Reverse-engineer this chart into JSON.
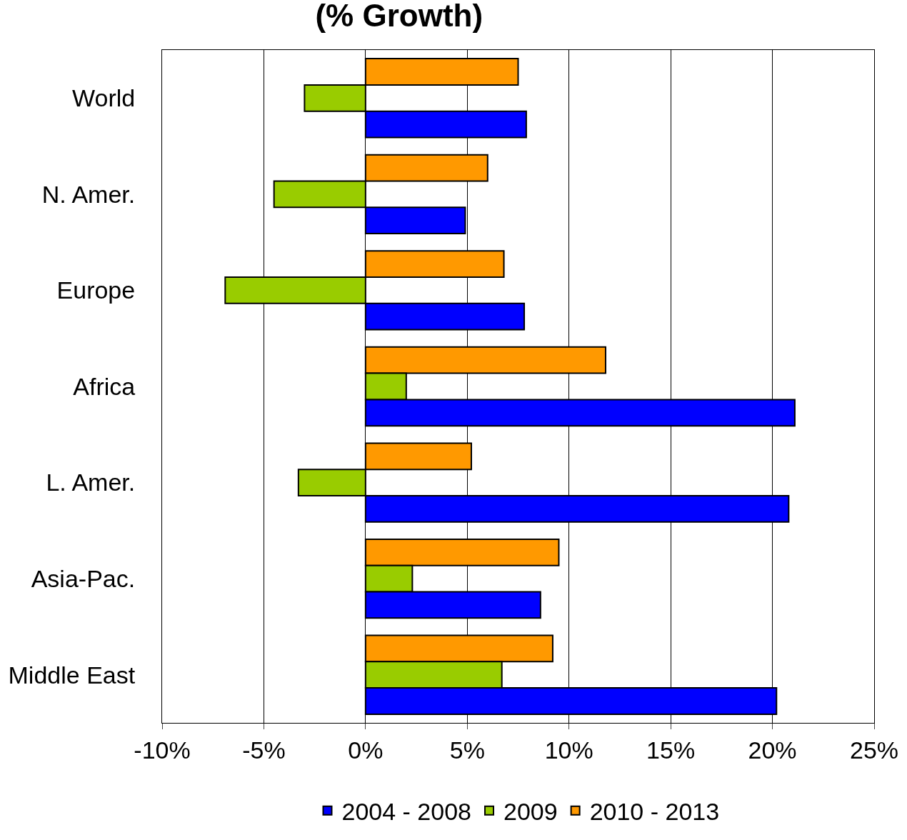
{
  "chart_data": {
    "type": "bar",
    "orientation": "horizontal",
    "title": "(% Growth)",
    "categories": [
      "World",
      "N. Amer.",
      "Europe",
      "Africa",
      "L. Amer.",
      "Asia-Pac.",
      "Middle East"
    ],
    "series": [
      {
        "name": "2004 - 2008",
        "color": "#0000ff",
        "values": [
          7.9,
          4.9,
          7.8,
          21.1,
          20.8,
          8.6,
          20.2
        ]
      },
      {
        "name": "2009",
        "color": "#99cc00",
        "values": [
          -3.0,
          -4.5,
          -6.9,
          2.0,
          -3.3,
          2.3,
          6.7
        ]
      },
      {
        "name": "2010 - 2013",
        "color": "#ff9900",
        "values": [
          7.5,
          6.0,
          6.8,
          11.8,
          5.2,
          9.5,
          9.2
        ]
      }
    ],
    "xlim": [
      -10,
      25
    ],
    "xticks": [
      {
        "value": -10,
        "label": "-10%"
      },
      {
        "value": -5,
        "label": "-5%"
      },
      {
        "value": 0,
        "label": "0%"
      },
      {
        "value": 5,
        "label": "5%"
      },
      {
        "value": 10,
        "label": "10%"
      },
      {
        "value": 15,
        "label": "15%"
      },
      {
        "value": 20,
        "label": "20%"
      },
      {
        "value": 25,
        "label": "25%"
      }
    ],
    "grid": "x",
    "legend": "bottom"
  }
}
